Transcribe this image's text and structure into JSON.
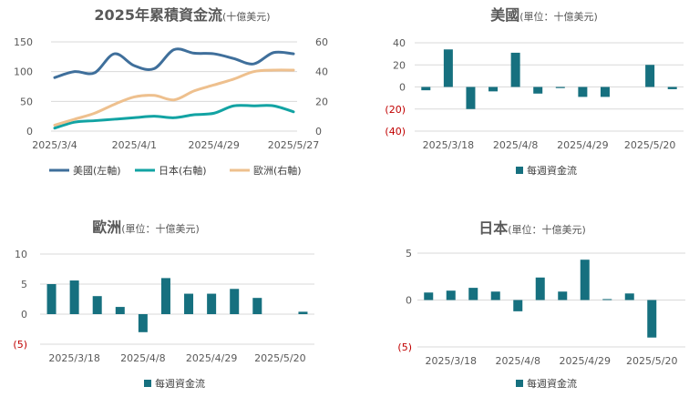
{
  "colors": {
    "us": "#3f6f9b",
    "jp": "#12a3a3",
    "eu": "#eec08e",
    "bar": "#16707f",
    "negative_label": "#c00000",
    "text": "#595959",
    "grid": "#d9d9d9"
  },
  "chart_data": [
    {
      "type": "line",
      "title": "2025年累積資金流",
      "unit": "(十億美元)",
      "x": [
        "2025/3/4",
        "2025/3/11",
        "2025/3/18",
        "2025/3/25",
        "2025/4/1",
        "2025/4/8",
        "2025/4/15",
        "2025/4/22",
        "2025/4/29",
        "2025/5/6",
        "2025/5/13",
        "2025/5/20",
        "2025/5/27"
      ],
      "x_tick_labels": [
        "2025/3/4",
        "2025/4/1",
        "2025/4/29",
        "2025/5/27"
      ],
      "y_left_ticks": [
        "0",
        "50",
        "100",
        "150"
      ],
      "y_right_ticks": [
        "0",
        "20",
        "40",
        "60"
      ],
      "ylim_left": [
        0,
        150
      ],
      "ylim_right": [
        0,
        60
      ],
      "legend_position": "bottom",
      "series": [
        {
          "name": "美國(左軸)",
          "axis": "left",
          "color_key": "us",
          "values": [
            90,
            100,
            98,
            130,
            110,
            105,
            137,
            131,
            130,
            122,
            113,
            132,
            130
          ]
        },
        {
          "name": "日本(右軸)",
          "axis": "right",
          "color_key": "jp",
          "values": [
            2,
            6,
            7,
            8,
            9,
            10,
            9,
            11,
            12,
            17,
            17,
            17,
            13
          ]
        },
        {
          "name": "歐洲(右軸)",
          "axis": "right",
          "color_key": "eu",
          "values": [
            4,
            8,
            12,
            18,
            23,
            24,
            21,
            27,
            31,
            35,
            40,
            41,
            41
          ]
        }
      ]
    },
    {
      "type": "bar",
      "title": "美國",
      "unit": "(單位：十億美元)",
      "categories": [
        "2025/3/11",
        "2025/3/18",
        "2025/3/25",
        "2025/4/1",
        "2025/4/8",
        "2025/4/15",
        "2025/4/22",
        "2025/4/29",
        "2025/5/6",
        "2025/5/13",
        "2025/5/20",
        "2025/5/27"
      ],
      "x_tick_labels": [
        "2025/3/18",
        "2025/4/8",
        "2025/4/29",
        "2025/5/20"
      ],
      "y_ticks": [
        "(40)",
        "(20)",
        "0",
        "20",
        "40"
      ],
      "ylim": [
        -40,
        40
      ],
      "legend": "每週資金流",
      "values": [
        -3,
        34,
        -20,
        -4,
        31,
        -6,
        -1,
        -9,
        -9,
        0,
        20,
        -2
      ]
    },
    {
      "type": "bar",
      "title": "歐洲",
      "unit": "(單位：十億美元)",
      "categories": [
        "2025/3/11",
        "2025/3/18",
        "2025/3/25",
        "2025/4/1",
        "2025/4/8",
        "2025/4/15",
        "2025/4/22",
        "2025/4/29",
        "2025/5/6",
        "2025/5/13",
        "2025/5/20",
        "2025/5/27"
      ],
      "x_tick_labels": [
        "2025/3/18",
        "2025/4/8",
        "2025/4/29",
        "2025/5/20"
      ],
      "y_ticks": [
        "(5)",
        "0",
        "5",
        "10"
      ],
      "ylim": [
        -5,
        10
      ],
      "legend": "每週資金流",
      "values": [
        5,
        5.6,
        3,
        1.2,
        -3,
        6,
        3.4,
        3.4,
        4.2,
        2.7,
        0,
        0.4
      ]
    },
    {
      "type": "bar",
      "title": "日本",
      "unit": "(單位：十億美元)",
      "categories": [
        "2025/3/11",
        "2025/3/18",
        "2025/3/25",
        "2025/4/1",
        "2025/4/8",
        "2025/4/15",
        "2025/4/22",
        "2025/4/29",
        "2025/5/6",
        "2025/5/13",
        "2025/5/20",
        "2025/5/27"
      ],
      "x_tick_labels": [
        "2025/3/18",
        "2025/4/8",
        "2025/4/29",
        "2025/5/20"
      ],
      "y_ticks": [
        "(5)",
        "0",
        "5"
      ],
      "ylim": [
        -5,
        5
      ],
      "legend": "每週資金流",
      "values": [
        0.8,
        1,
        1.3,
        0.9,
        -1.2,
        2.4,
        0.9,
        4.3,
        0.1,
        0.7,
        -4,
        0
      ]
    }
  ]
}
